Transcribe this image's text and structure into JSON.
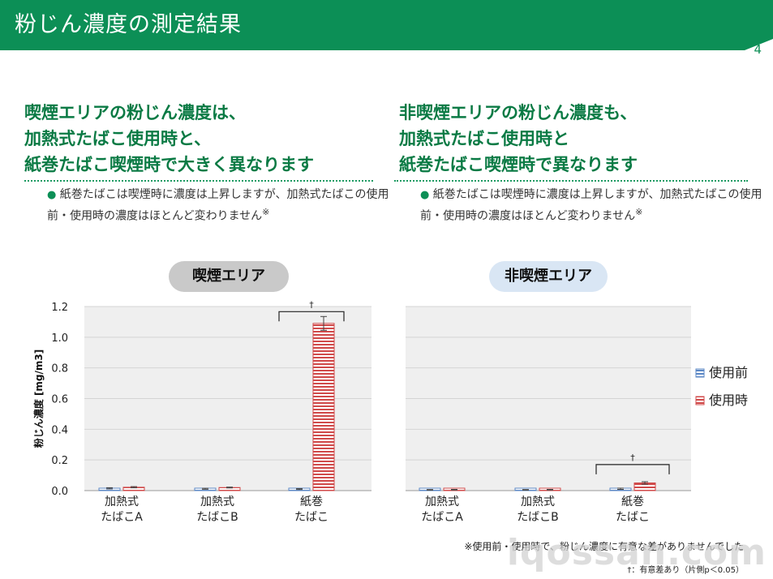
{
  "header": {
    "title": "粉じん濃度の測定結果",
    "page_number": "4",
    "color": "#0c8f56"
  },
  "left": {
    "headline": [
      "喫煙エリアの粉じん濃度は、",
      "加熱式たばこ使用時と、",
      "紙巻たばこ喫煙時で大きく異なります"
    ],
    "bullet": "紙巻たばこは喫煙時に濃度は上昇しますが、加熱式たばこの使用前・使用時の濃度はほとんど変わりません",
    "area_label": "喫煙エリア"
  },
  "right": {
    "headline": [
      "非喫煙エリアの粉じん濃度も、",
      "加熱式たばこ使用時と",
      "紙巻たばこ喫煙時で異なります"
    ],
    "bullet": "紙巻たばこは喫煙時に濃度は上昇しますが、加熱式たばこの使用前・使用時の濃度はほとんど変わりません",
    "area_label": "非喫煙エリア"
  },
  "bullet_mark": "●",
  "footnote_mark": "※",
  "chart_data": [
    {
      "type": "bar",
      "title": "喫煙エリア",
      "ylabel": "粉じん濃度 [mg/m3]",
      "ylim": [
        0,
        1.2
      ],
      "yticks": [
        "0.0",
        "0.2",
        "0.4",
        "0.6",
        "0.8",
        "1.0",
        "1.2"
      ],
      "categories": [
        [
          "加熱式",
          "たばこA"
        ],
        [
          "加熱式",
          "たばこB"
        ],
        [
          "紙巻",
          "たばこ"
        ]
      ],
      "series": [
        {
          "name": "使用前",
          "values": [
            0.015,
            0.012,
            0.01
          ],
          "errors": [
            0.004,
            0.003,
            0.003
          ],
          "color": "#5b87c5"
        },
        {
          "name": "使用時",
          "values": [
            0.022,
            0.02,
            1.09
          ],
          "errors": [
            0.004,
            0.003,
            0.045
          ],
          "color": "#d04a4a"
        }
      ],
      "significance": {
        "category_index": 2,
        "mark": "†"
      }
    },
    {
      "type": "bar",
      "title": "非喫煙エリア",
      "ylim": [
        0,
        1.2
      ],
      "categories": [
        [
          "加熱式",
          "たばこA"
        ],
        [
          "加熱式",
          "たばこB"
        ],
        [
          "紙巻",
          "たばこ"
        ]
      ],
      "series": [
        {
          "name": "使用前",
          "values": [
            0.005,
            0.005,
            0.012
          ],
          "errors": [
            0.002,
            0.002,
            0.004
          ],
          "color": "#5b87c5"
        },
        {
          "name": "使用時",
          "values": [
            0.006,
            0.006,
            0.05
          ],
          "errors": [
            0.002,
            0.002,
            0.008
          ],
          "color": "#d04a4a"
        }
      ],
      "significance": {
        "category_index": 2,
        "mark": "†"
      }
    }
  ],
  "legend": [
    "使用前",
    "使用時"
  ],
  "notes": {
    "note1": "※使用前・使用時で、粉じん濃度に有意な差がありませんでした",
    "note2": "†：有意差あり（片側p＜0.05）"
  },
  "watermark": "iqossan.com"
}
